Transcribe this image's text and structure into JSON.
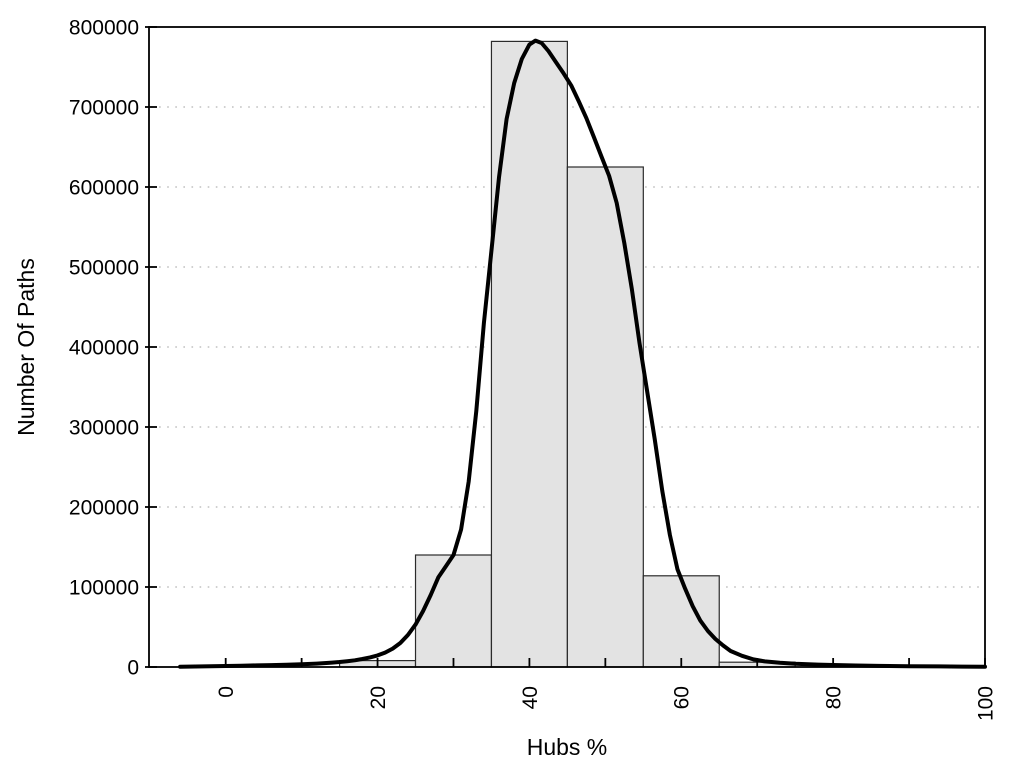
{
  "chart_data": {
    "type": "bar",
    "subtype": "histogram_with_density_curve",
    "title": "",
    "xlabel": "Hubs %",
    "ylabel": "Number Of Paths",
    "xlim": [
      -10.1,
      100
    ],
    "ylim": [
      0,
      800000
    ],
    "x_major_ticks": [
      0,
      20,
      40,
      60,
      80,
      100
    ],
    "x_tick_labels": [
      "0",
      "20",
      "40",
      "60",
      "80",
      "100"
    ],
    "x_minor_ticks": [
      10,
      30,
      50,
      70,
      90
    ],
    "y_ticks": [
      0,
      100000,
      200000,
      300000,
      400000,
      500000,
      600000,
      700000,
      800000
    ],
    "y_tick_labels": [
      "0",
      "100000",
      "200000",
      "300000",
      "400000",
      "500000",
      "600000",
      "700000",
      "800000"
    ],
    "grid": {
      "horizontal": true,
      "style": "dotted",
      "lines_at": [
        100000,
        200000,
        300000,
        400000,
        500000,
        600000,
        700000
      ]
    },
    "legend": null,
    "histogram_bin_width": 10,
    "histogram_bars": [
      {
        "bin_start": 15,
        "bin_end": 25,
        "count": 8000
      },
      {
        "bin_start": 25,
        "bin_end": 35,
        "count": 140000
      },
      {
        "bin_start": 35,
        "bin_end": 45,
        "count": 782000
      },
      {
        "bin_start": 45,
        "bin_end": 55,
        "count": 625000
      },
      {
        "bin_start": 55,
        "bin_end": 65,
        "count": 114000
      },
      {
        "bin_start": 65,
        "bin_end": 75,
        "count": 6000
      }
    ],
    "density_curve_points": [
      [
        -6,
        400
      ],
      [
        -4,
        600
      ],
      [
        -2,
        900
      ],
      [
        0,
        1300
      ],
      [
        2,
        1600
      ],
      [
        4,
        2000
      ],
      [
        6,
        2400
      ],
      [
        8,
        2900
      ],
      [
        10,
        3400
      ],
      [
        12,
        4300
      ],
      [
        14,
        5500
      ],
      [
        15,
        6200
      ],
      [
        16,
        7200
      ],
      [
        17,
        8400
      ],
      [
        18,
        10000
      ],
      [
        19,
        12000
      ],
      [
        20,
        14500
      ],
      [
        21,
        18000
      ],
      [
        22,
        23000
      ],
      [
        23,
        30000
      ],
      [
        24,
        40000
      ],
      [
        25,
        53000
      ],
      [
        26,
        70000
      ],
      [
        27,
        90000
      ],
      [
        28,
        112000
      ],
      [
        29,
        126000
      ],
      [
        30,
        140000
      ],
      [
        31,
        172000
      ],
      [
        32,
        232000
      ],
      [
        33,
        320000
      ],
      [
        34,
        430000
      ],
      [
        35,
        520000
      ],
      [
        36,
        612000
      ],
      [
        37,
        685000
      ],
      [
        38,
        730000
      ],
      [
        39,
        760000
      ],
      [
        40,
        778000
      ],
      [
        40.8,
        783000
      ],
      [
        41.6,
        780000
      ],
      [
        42.5,
        770000
      ],
      [
        43.5,
        756000
      ],
      [
        44.5,
        742000
      ],
      [
        45.5,
        727000
      ],
      [
        46.5,
        707000
      ],
      [
        47.5,
        686000
      ],
      [
        48.5,
        662000
      ],
      [
        49.5,
        638000
      ],
      [
        50.5,
        614000
      ],
      [
        51.5,
        580000
      ],
      [
        52.5,
        530000
      ],
      [
        53.5,
        472000
      ],
      [
        54.5,
        405000
      ],
      [
        55.5,
        345000
      ],
      [
        56.5,
        285000
      ],
      [
        57.5,
        220000
      ],
      [
        58.5,
        165000
      ],
      [
        59.5,
        122000
      ],
      [
        60.5,
        98000
      ],
      [
        61.5,
        76000
      ],
      [
        62.5,
        58000
      ],
      [
        63.5,
        45000
      ],
      [
        64.5,
        35000
      ],
      [
        65.5,
        27000
      ],
      [
        66.5,
        20000
      ],
      [
        68,
        14000
      ],
      [
        69.5,
        9500
      ],
      [
        71,
        7000
      ],
      [
        73,
        5200
      ],
      [
        75,
        4000
      ],
      [
        78,
        3000
      ],
      [
        80,
        2500
      ],
      [
        83,
        1900
      ],
      [
        86,
        1400
      ],
      [
        90,
        1000
      ],
      [
        94,
        700
      ],
      [
        97,
        550
      ],
      [
        100,
        400
      ]
    ]
  },
  "colors": {
    "background": "#ffffff",
    "bar_fill": "#e3e3e3",
    "bar_stroke": "#2b2b2b",
    "curve": "#000000",
    "grid": "#c0c0c0",
    "axis": "#000000",
    "text": "#000000"
  }
}
